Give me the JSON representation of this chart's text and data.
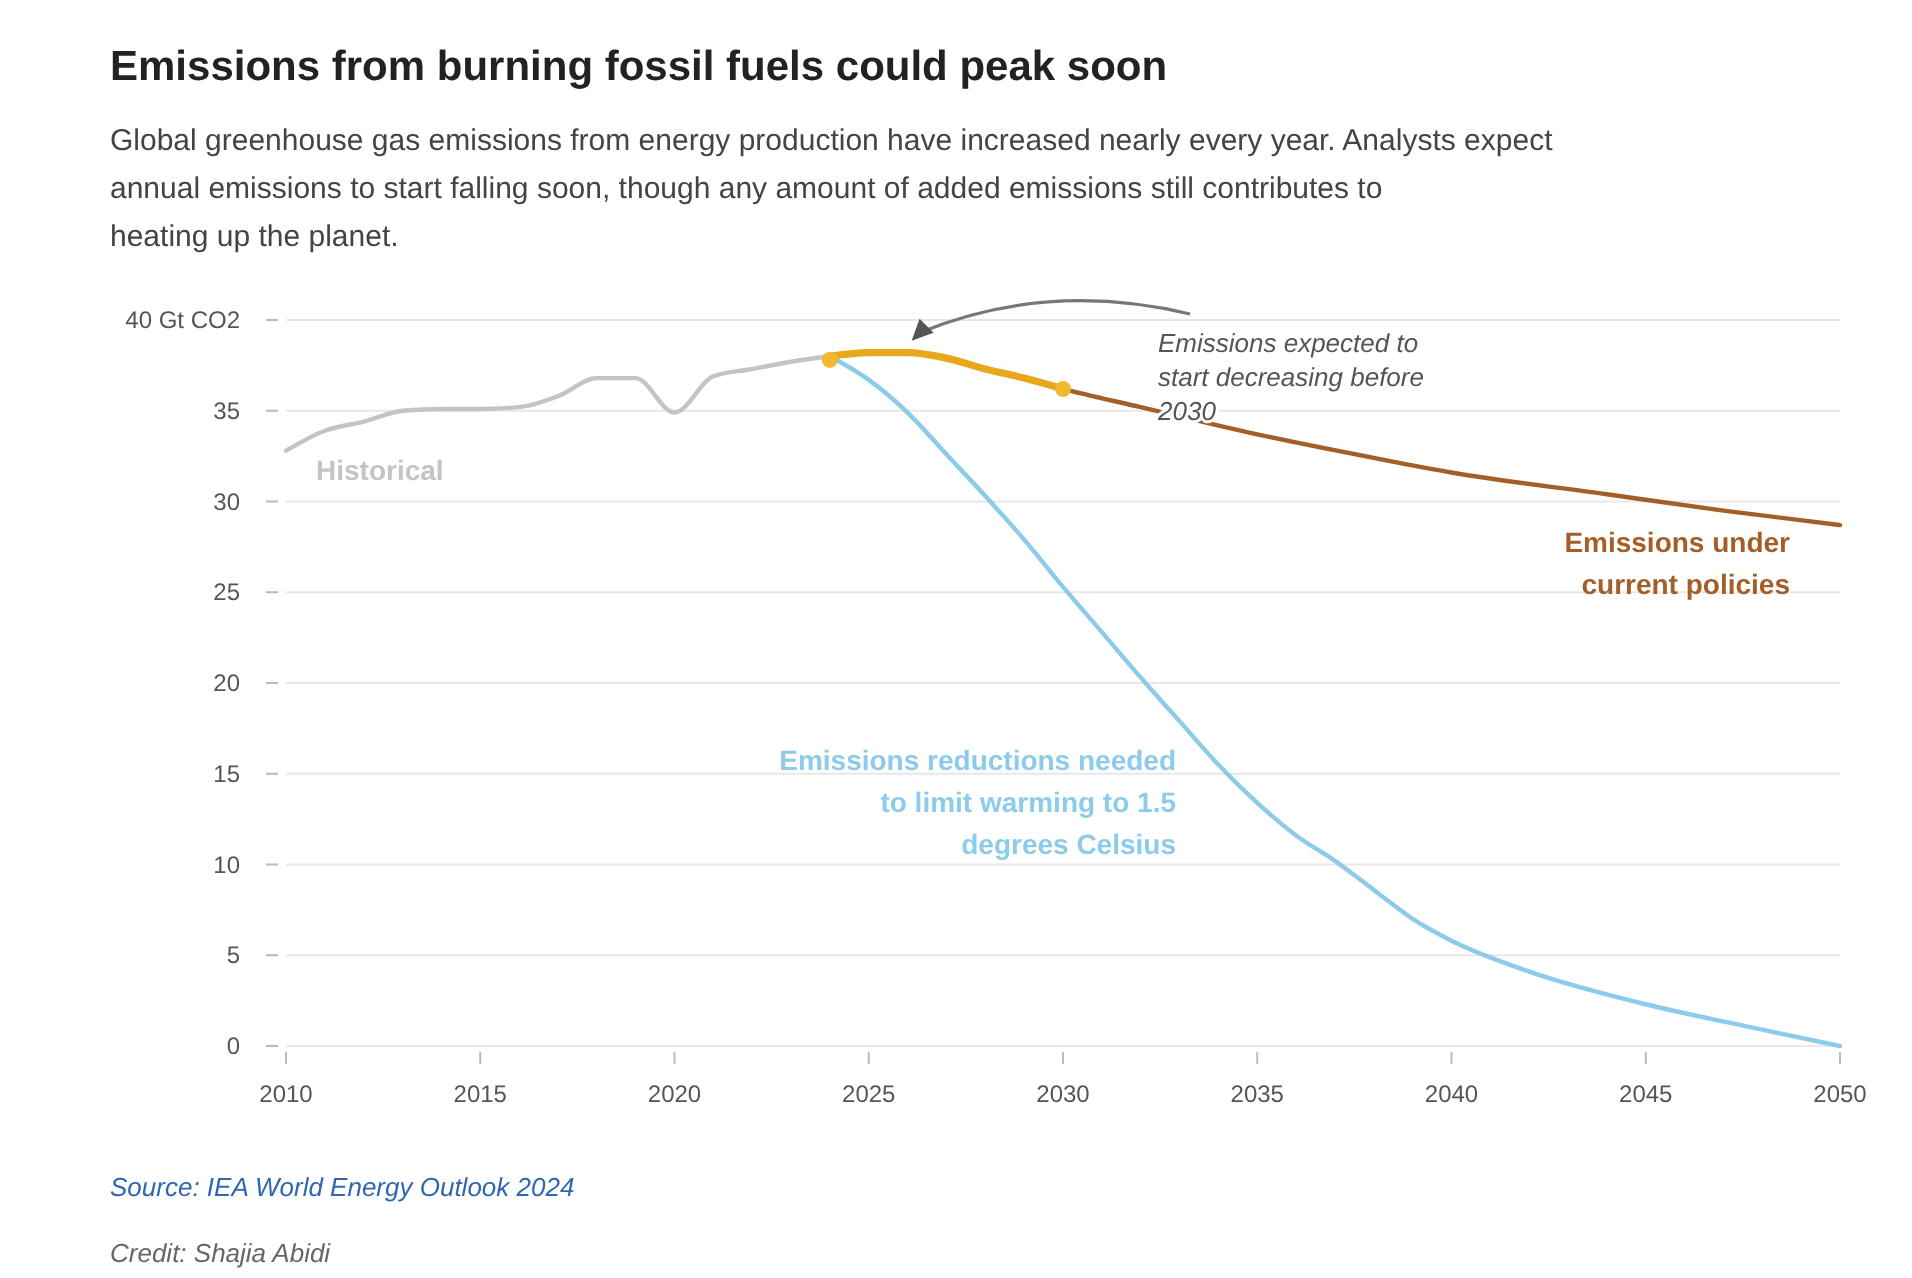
{
  "chart_data": {
    "type": "line",
    "title": "Emissions from burning fossil fuels could peak soon",
    "subtitle": "Global greenhouse gas emissions from energy production have increased nearly every year. Analysts expect annual emissions to start falling soon, though any amount of added emissions still contributes to heating up the planet.",
    "xlim": [
      2010,
      2050
    ],
    "xticks": [
      2010,
      2015,
      2020,
      2025,
      2030,
      2035,
      2040,
      2045,
      2050
    ],
    "ylim": [
      0,
      40
    ],
    "yticks": [
      0,
      5,
      10,
      15,
      20,
      25,
      30,
      35,
      {
        "value": 40,
        "label": "40 Gt CO2"
      }
    ],
    "grid": "y",
    "series": [
      {
        "name": "Historical",
        "color": "#c4c4c4",
        "x": [
          2010,
          2011,
          2012,
          2013,
          2014,
          2015,
          2016,
          2017,
          2018,
          2019,
          2020,
          2021,
          2022,
          2023,
          2024
        ],
        "values": [
          32.8,
          33.9,
          34.4,
          35.0,
          35.1,
          35.1,
          35.2,
          35.8,
          36.8,
          36.8,
          34.9,
          36.9,
          37.3,
          37.7,
          38.0
        ]
      },
      {
        "name": "Emissions under current policies",
        "color": "#a35f27",
        "x": [
          2024,
          2025,
          2026,
          2027,
          2028,
          2029,
          2030,
          2032,
          2035,
          2038,
          2040,
          2044,
          2047,
          2050
        ],
        "values": [
          38.0,
          38.2,
          38.2,
          37.9,
          37.3,
          36.8,
          36.2,
          35.2,
          33.7,
          32.4,
          31.6,
          30.4,
          29.5,
          28.7
        ]
      },
      {
        "name": "Emissions reductions needed to limit warming to 1.5 degrees Celsius",
        "color": "#8ccbea",
        "x": [
          2024,
          2025,
          2026,
          2027,
          2028,
          2029,
          2030,
          2031,
          2032,
          2033,
          2034,
          2035,
          2036,
          2037,
          2038,
          2039,
          2040,
          2042,
          2045,
          2048,
          2050
        ],
        "values": [
          38.0,
          36.7,
          34.9,
          32.6,
          30.3,
          27.9,
          25.3,
          22.8,
          20.3,
          17.9,
          15.5,
          13.4,
          11.6,
          10.2,
          8.6,
          7.0,
          5.8,
          4.1,
          2.3,
          0.9,
          0
        ]
      },
      {
        "color": "#e9a81c",
        "x": [
          2024,
          2025,
          2026,
          2027,
          2028,
          2029,
          2030
        ],
        "values": [
          38.0,
          38.2,
          38.2,
          37.9,
          37.3,
          36.8,
          36.2
        ]
      },
      {
        "type": "scatter",
        "marker": "circle",
        "color": "#f2b82e",
        "x": [
          2024,
          2030
        ],
        "values": [
          37.8,
          36.2
        ]
      }
    ],
    "annotations": [
      "Emissions expected to start decreasing before 2030",
      "Source: IEA World Energy Outlook 2024",
      "Credit: Shajia Abidi"
    ]
  }
}
